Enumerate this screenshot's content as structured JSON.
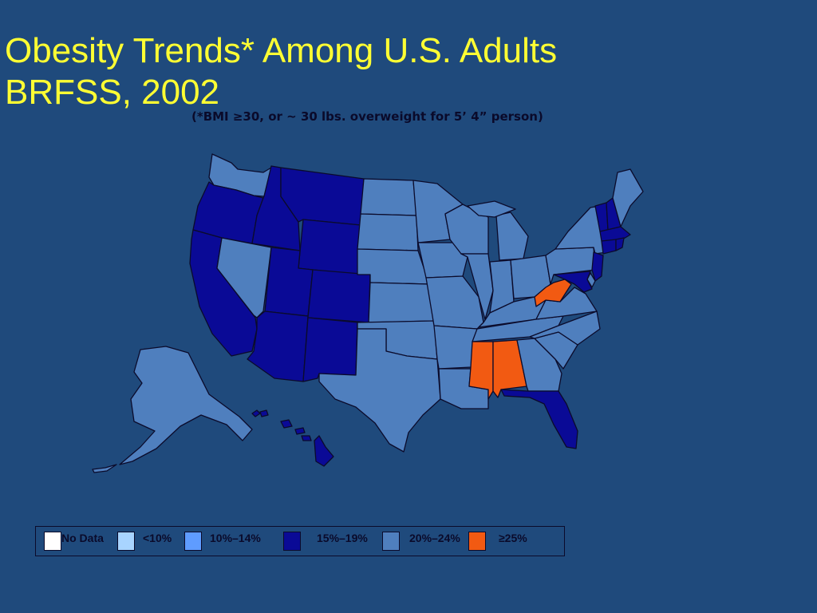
{
  "title": {
    "line1": "Obesity Trends* Among U.S. Adults",
    "line2": "BRFSS, 2002"
  },
  "subtitle": "(*BMI ≥30, or ~ 30 lbs. overweight for 5’ 4” person)",
  "legend": [
    {
      "label": "No Data",
      "color": "#ffffff"
    },
    {
      "label": "<10%",
      "color": "#a8d4ff"
    },
    {
      "label": "10%–14%",
      "color": "#5f9cff"
    },
    {
      "label": "15%–19%",
      "color": "#0a0a96"
    },
    {
      "label": "20%–24%",
      "color": "#4f7fbe"
    },
    {
      "label": "≥25%",
      "color": "#f25a12"
    }
  ],
  "states": {
    "WA": "20%–24%",
    "OR": "15%–19%",
    "CA": "15%–19%",
    "NV": "20%–24%",
    "ID": "15%–19%",
    "MT": "15%–19%",
    "WY": "15%–19%",
    "UT": "15%–19%",
    "AZ": "15%–19%",
    "CO": "15%–19%",
    "NM": "15%–19%",
    "ND": "20%–24%",
    "SD": "20%–24%",
    "NE": "20%–24%",
    "KS": "20%–24%",
    "OK": "20%–24%",
    "TX": "20%–24%",
    "MN": "20%–24%",
    "IA": "20%–24%",
    "MO": "20%–24%",
    "AR": "20%–24%",
    "LA": "20%–24%",
    "WI": "20%–24%",
    "IL": "20%–24%",
    "MI": "20%–24%",
    "IN": "20%–24%",
    "OH": "20%–24%",
    "KY": "20%–24%",
    "TN": "20%–24%",
    "MS": "≥25%",
    "AL": "≥25%",
    "GA": "20%–24%",
    "FL": "15%–19%",
    "SC": "20%–24%",
    "NC": "20%–24%",
    "VA": "20%–24%",
    "WV": "≥25%",
    "PA": "20%–24%",
    "NY": "20%–24%",
    "NJ": "15%–19%",
    "DE": "20%–24%",
    "MD": "15%–19%",
    "CT": "15%–19%",
    "RI": "15%–19%",
    "MA": "15%–19%",
    "VT": "15%–19%",
    "NH": "15%–19%",
    "ME": "20%–24%",
    "AK": "20%–24%",
    "HI": "15%–19%"
  }
}
